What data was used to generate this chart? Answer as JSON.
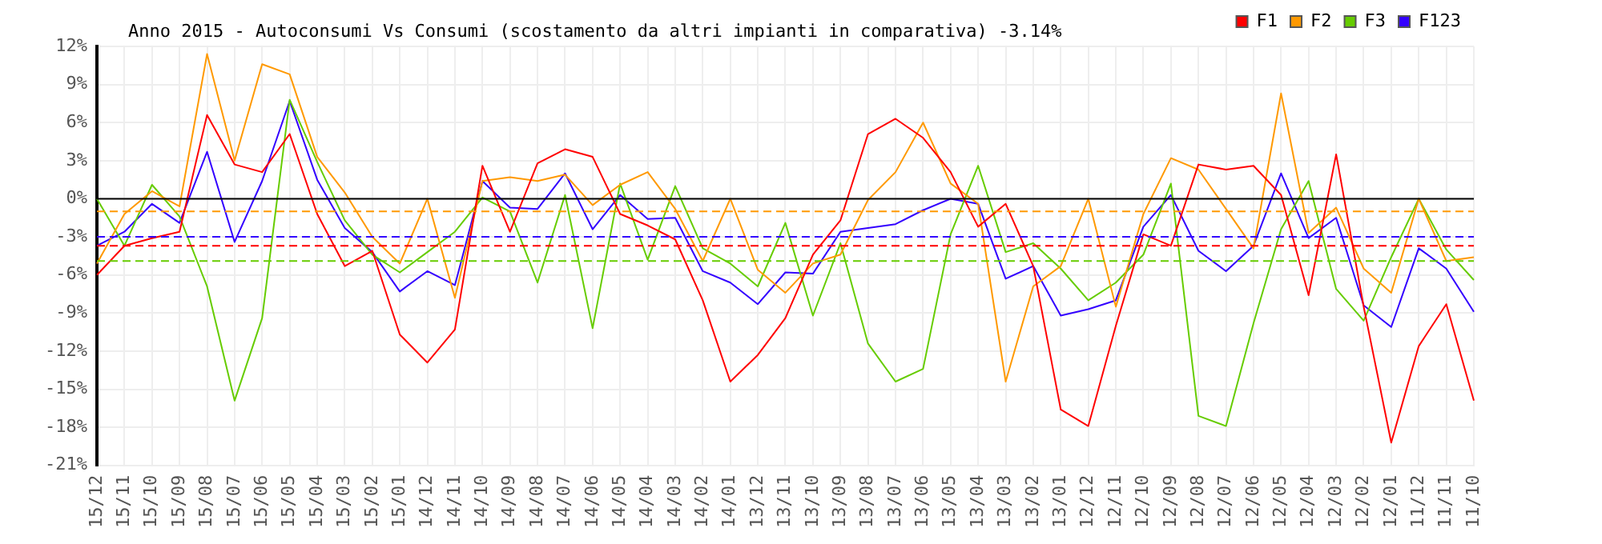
{
  "chart_data": {
    "type": "line",
    "title": "Anno 2015 - Autoconsumi Vs Consumi (scostamento da altri impianti in comparativa) -3.14%",
    "categories": [
      "15/12",
      "15/11",
      "15/10",
      "15/09",
      "15/08",
      "15/07",
      "15/06",
      "15/05",
      "15/04",
      "15/03",
      "15/02",
      "15/01",
      "14/12",
      "14/11",
      "14/10",
      "14/09",
      "14/08",
      "14/07",
      "14/06",
      "14/05",
      "14/04",
      "14/03",
      "14/02",
      "14/01",
      "13/12",
      "13/11",
      "13/10",
      "13/09",
      "13/08",
      "13/07",
      "13/06",
      "13/05",
      "13/04",
      "13/03",
      "13/02",
      "13/01",
      "12/12",
      "12/11",
      "12/10",
      "12/09",
      "12/08",
      "12/07",
      "12/06",
      "12/05",
      "12/04",
      "12/03",
      "12/02",
      "12/01",
      "11/12",
      "11/11",
      "11/10"
    ],
    "series": [
      {
        "name": "F1",
        "color": "#ff0000",
        "values": [
          -6.0,
          -3.7,
          -3.1,
          -2.6,
          6.6,
          2.7,
          2.1,
          5.1,
          -1.2,
          -5.3,
          -4.1,
          -10.7,
          -12.9,
          -10.3,
          2.6,
          -2.6,
          2.8,
          3.9,
          3.3,
          -1.2,
          -2.1,
          -3.2,
          -8.0,
          -14.4,
          -12.3,
          -9.4,
          -4.4,
          -1.7,
          5.1,
          6.3,
          4.8,
          2.1,
          -2.2,
          -0.4,
          -5.3,
          -16.6,
          -17.9,
          -10.0,
          -2.8,
          -3.7,
          2.7,
          2.3,
          2.6,
          0.3,
          -7.6,
          3.5,
          -8.5,
          -19.2,
          -11.6,
          -8.3,
          -15.9
        ]
      },
      {
        "name": "F2",
        "color": "#ff9900",
        "values": [
          -5.1,
          -1.2,
          0.6,
          -0.6,
          11.4,
          3.0,
          10.6,
          9.8,
          3.3,
          0.5,
          -3.0,
          -5.1,
          0,
          -7.8,
          1.4,
          1.7,
          1.4,
          1.9,
          -0.5,
          1.1,
          2.1,
          -0.8,
          -4.9,
          0,
          -5.6,
          -7.4,
          -5.1,
          -4.4,
          -0.1,
          2.1,
          6.0,
          1.2,
          -0.4,
          -14.4,
          -6.9,
          -5.3,
          0,
          -8.5,
          -1.2,
          3.2,
          2.3,
          -0.8,
          -3.9,
          8.3,
          -2.7,
          -0.7,
          -5.5,
          -7.4,
          0,
          -4.9,
          -4.6
        ]
      },
      {
        "name": "F3",
        "color": "#66cc00",
        "values": [
          0,
          -3.7,
          1.1,
          -1.4,
          -6.9,
          -15.9,
          -9.4,
          7.8,
          2.9,
          -1.7,
          -4.4,
          -5.8,
          -4.2,
          -2.6,
          0.1,
          -1.0,
          -6.6,
          0.3,
          -10.2,
          1.2,
          -4.8,
          1.0,
          -3.9,
          -5.1,
          -6.9,
          -1.9,
          -9.2,
          -3.5,
          -11.4,
          -14.4,
          -13.4,
          -2.8,
          2.6,
          -4.2,
          -3.5,
          -5.5,
          -8.0,
          -6.6,
          -4.4,
          1.2,
          -17.1,
          -17.9,
          -9.8,
          -2.4,
          1.4,
          -7.1,
          -9.6,
          -4.6,
          0,
          -4.0,
          -6.4
        ]
      },
      {
        "name": "F123",
        "color": "#3300ff",
        "values": [
          -3.7,
          -2.6,
          -0.4,
          -1.9,
          3.7,
          -3.4,
          1.4,
          7.7,
          1.5,
          -2.3,
          -4.2,
          -7.3,
          -5.7,
          -6.8,
          1.4,
          -0.7,
          -0.8,
          2.0,
          -2.4,
          0.3,
          -1.6,
          -1.5,
          -5.7,
          -6.6,
          -8.3,
          -5.8,
          -5.9,
          -2.6,
          -2.3,
          -2.0,
          -0.9,
          0,
          -0.4,
          -6.3,
          -5.3,
          -9.2,
          -8.7,
          -8.0,
          -2.2,
          0.3,
          -4.1,
          -5.7,
          -3.7,
          2.0,
          -3.1,
          -1.5,
          -8.4,
          -10.1,
          -3.9,
          -5.5,
          -8.9
        ]
      }
    ],
    "ylim": [
      -21,
      12
    ],
    "yticks": [
      {
        "value": -21,
        "label": "-21%"
      },
      {
        "value": -18,
        "label": "-18%"
      },
      {
        "value": -15,
        "label": "-15%"
      },
      {
        "value": -12,
        "label": "-12%"
      },
      {
        "value": -9,
        "label": "-9%"
      },
      {
        "value": -6,
        "label": "-6%"
      },
      {
        "value": -3,
        "label": "-3%"
      },
      {
        "value": 0,
        "label": "0%"
      },
      {
        "value": 3,
        "label": "3%"
      },
      {
        "value": 6,
        "label": "6%"
      },
      {
        "value": 9,
        "label": "9%"
      },
      {
        "value": 12,
        "label": "12%"
      }
    ],
    "ref_lines": [
      {
        "axis": "y",
        "value": 0,
        "color": "#000000",
        "line_style": "solid"
      },
      {
        "axis": "y",
        "value": -1,
        "color": "#ff9900",
        "line_style": "dashed"
      },
      {
        "axis": "y",
        "value": -3,
        "color": "#3300ff",
        "line_style": "dashed"
      },
      {
        "axis": "y",
        "value": -3.7,
        "color": "#ff0000",
        "line_style": "dashed"
      },
      {
        "axis": "y",
        "value": -4.9,
        "color": "#66cc00",
        "line_style": "dashed"
      }
    ],
    "grid": true,
    "legend": "top right",
    "marker": "none",
    "line_style": "solid"
  }
}
